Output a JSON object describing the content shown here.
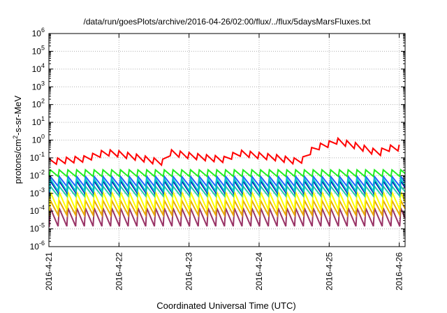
{
  "chart_data": {
    "type": "line",
    "title": "/data/run/goesPlots/archive/2016-04-26/02:00/flux/../flux/5daysMarsFluxes.txt",
    "xlabel": "Coordinated Universal Time (UTC)",
    "ylabel": {
      "pre": "protons/cm",
      "sup": "2",
      "post": "-s-sr-MeV"
    },
    "x_range_days": [
      "2016-04-21",
      "2016-04-26 02:00"
    ],
    "x_ticks": [
      "2016-4-21",
      "2016-4-22",
      "2016-4-23",
      "2016-4-24",
      "2016-4-25",
      "2016-4-26"
    ],
    "y_scale": "log",
    "ylim": [
      1e-06,
      1000000.0
    ],
    "y_ticks": [
      {
        "base": "10",
        "exp": "-6"
      },
      {
        "base": "10",
        "exp": "-5"
      },
      {
        "base": "10",
        "exp": "-4"
      },
      {
        "base": "10",
        "exp": "-3"
      },
      {
        "base": "10",
        "exp": "-2"
      },
      {
        "base": "10",
        "exp": "-1"
      },
      {
        "base": "10",
        "exp": "0"
      },
      {
        "base": "10",
        "exp": "1"
      },
      {
        "base": "10",
        "exp": "2"
      },
      {
        "base": "10",
        "exp": "3"
      },
      {
        "base": "10",
        "exp": "4"
      },
      {
        "base": "10",
        "exp": "5"
      },
      {
        "base": "10",
        "exp": "6"
      }
    ],
    "grid": true,
    "series": [
      {
        "color": "#ff0000",
        "style": "trend",
        "points": [
          [
            "2016-04-21 00:00",
            0.09
          ],
          [
            "2016-04-21 12:00",
            0.13
          ],
          [
            "2016-04-21 17:00",
            0.22
          ],
          [
            "2016-04-21 19:00",
            0.3
          ],
          [
            "2016-04-22 00:00",
            0.25
          ],
          [
            "2016-04-22 06:00",
            0.16
          ],
          [
            "2016-04-22 12:00",
            0.1
          ],
          [
            "2016-04-22 16:00",
            0.08
          ],
          [
            "2016-04-22 17:00",
            0.3
          ],
          [
            "2016-04-23 00:00",
            0.2
          ],
          [
            "2016-04-23 06:00",
            0.15
          ],
          [
            "2016-04-23 12:00",
            0.12
          ],
          [
            "2016-04-23 17:00",
            0.28
          ],
          [
            "2016-04-24 00:00",
            0.2
          ],
          [
            "2016-04-24 06:00",
            0.15
          ],
          [
            "2016-04-24 12:00",
            0.1
          ],
          [
            "2016-04-24 16:00",
            0.12
          ],
          [
            "2016-04-24 17:00",
            0.3
          ],
          [
            "2016-04-24 20:00",
            0.6
          ],
          [
            "2016-04-25 00:00",
            0.9
          ],
          [
            "2016-04-25 02:00",
            1.4
          ],
          [
            "2016-04-25 08:00",
            0.8
          ],
          [
            "2016-04-25 14:00",
            0.4
          ],
          [
            "2016-04-25 17:00",
            0.25
          ],
          [
            "2016-04-25 19:00",
            0.5
          ],
          [
            "2016-04-26 00:00",
            0.55
          ],
          [
            "2016-04-26 02:00",
            0.3
          ]
        ],
        "sawtooth_per_day": 8,
        "sawtooth_depth": 0.45
      },
      {
        "color": "#22ee22",
        "style": "sawtooth",
        "peak": 0.021,
        "trough": 0.009,
        "per_day": 8
      },
      {
        "color": "#00c8c8",
        "style": "sawtooth",
        "peak": 0.0065,
        "trough": 0.0013,
        "per_day": 8
      },
      {
        "color": "#1f5fff",
        "style": "sawtooth",
        "peak": 0.009,
        "trough": 0.0025,
        "per_day": 8
      },
      {
        "color": "#0000bb",
        "style": "sawtooth",
        "peak": 0.005,
        "trough": 0.0011,
        "per_day": 8
      },
      {
        "color": "#22ccaa",
        "style": "sawtooth",
        "peak": 0.0025,
        "trough": 0.0007,
        "per_day": 8
      },
      {
        "color": "#ffff00",
        "style": "sawtooth",
        "peak": 0.0012,
        "trough": 0.00012,
        "per_day": 8
      },
      {
        "color": "#e8a800",
        "style": "sawtooth",
        "peak": 0.0004,
        "trough": 6e-05,
        "per_day": 8
      },
      {
        "color": "#993366",
        "style": "sawtooth",
        "peak": 0.00015,
        "trough": 1.4e-05,
        "per_day": 8
      }
    ]
  }
}
